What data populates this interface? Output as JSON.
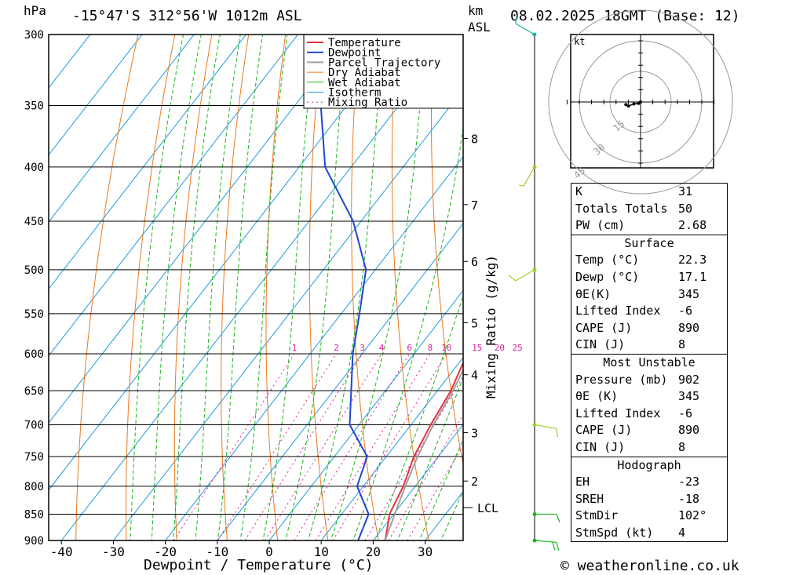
{
  "header": {
    "pressure_unit": "hPa",
    "location": "-15°47'S  312°56'W  1012m  ASL",
    "km_label": "km",
    "asl_label": "ASL",
    "datetime": "08.02.2025  18GMT  (Base: 12)"
  },
  "footer": {
    "copyright": "© weatheronline.co.uk"
  },
  "chart_data": {
    "type": "line",
    "title": "-15°47'S  312°56'W  1012m  ASL",
    "xlabel": "Dewpoint / Temperature (°C)",
    "ylabel": "hPa",
    "secondary_ylabel": "Mixing Ratio (g/kg)",
    "y_scale": "log",
    "ylim": [
      900,
      300
    ],
    "pressure_ticks": [
      300,
      350,
      400,
      450,
      500,
      550,
      600,
      650,
      700,
      750,
      800,
      850,
      900
    ],
    "temperature_ticks": [
      -40,
      -30,
      -20,
      -10,
      0,
      10,
      20,
      30
    ],
    "altitude_ticks_km": [
      {
        "km": "2",
        "p": 791
      },
      {
        "km": "3",
        "p": 712
      },
      {
        "km": "4",
        "p": 628
      },
      {
        "km": "5",
        "p": 561
      },
      {
        "km": "6",
        "p": 491
      },
      {
        "km": "7",
        "p": 434
      },
      {
        "km": "8",
        "p": 376
      }
    ],
    "lcl": {
      "label": "LCL",
      "p": 838
    },
    "mixing_ratio_labels": [
      "1",
      "2",
      "3",
      "4",
      "6",
      "8",
      "10",
      "15",
      "20",
      "25"
    ],
    "mixing_ratio_label_pressure": 600,
    "legend": [
      "Temperature",
      "Dewpoint",
      "Parcel Trajectory",
      "Dry Adiabat",
      "Wet Adiabat",
      "Isotherm",
      "Mixing Ratio"
    ],
    "legend_position": "top-right",
    "colors": {
      "temperature": "#e8323c",
      "dewpoint": "#1e46d2",
      "parcel": "#a0a0a0",
      "dry_adiabat": "#e87a1e",
      "wet_adiabat": "#1eb41e",
      "isotherm": "#1e9bdc",
      "mixing_ratio": "#dc1e9b",
      "wind": "#9bd21e"
    },
    "series": [
      {
        "name": "Temperature",
        "points": [
          [
            900,
            22.3
          ],
          [
            870,
            20.5
          ],
          [
            850,
            19.2
          ],
          [
            800,
            17.7
          ],
          [
            750,
            15.3
          ],
          [
            700,
            13.8
          ],
          [
            650,
            12.6
          ],
          [
            600,
            10.2
          ],
          [
            550,
            6.5
          ],
          [
            500,
            1.9
          ],
          [
            450,
            -1.6
          ],
          [
            400,
            -8.7
          ],
          [
            350,
            -18.0
          ],
          [
            300,
            -30.0
          ]
        ]
      },
      {
        "name": "Dewpoint",
        "points": [
          [
            900,
            17.1
          ],
          [
            850,
            15.2
          ],
          [
            800,
            8.8
          ],
          [
            750,
            6.3
          ],
          [
            700,
            -1.8
          ],
          [
            650,
            -6.6
          ],
          [
            600,
            -11.8
          ],
          [
            550,
            -16.5
          ],
          [
            500,
            -21.8
          ],
          [
            450,
            -31.5
          ],
          [
            400,
            -45.0
          ],
          [
            350,
            -55.0
          ],
          [
            300,
            -67.0
          ]
        ]
      },
      {
        "name": "Parcel Trajectory",
        "points": [
          [
            900,
            22.3
          ],
          [
            838,
            19.7
          ],
          [
            800,
            18.1
          ],
          [
            750,
            16.0
          ],
          [
            700,
            14.3
          ],
          [
            650,
            13.0
          ],
          [
            600,
            11.0
          ],
          [
            550,
            9.0
          ],
          [
            500,
            6.0
          ],
          [
            450,
            2.0
          ],
          [
            400,
            -4.5
          ],
          [
            350,
            -13.0
          ],
          [
            300,
            -23.0
          ]
        ]
      }
    ],
    "wind_barbs": [
      {
        "p": 300,
        "speed_kt": 10,
        "dir": 300
      },
      {
        "p": 400,
        "speed_kt": 5,
        "dir": 210
      },
      {
        "p": 500,
        "speed_kt": 10,
        "dir": 240
      },
      {
        "p": 700,
        "speed_kt": 10,
        "dir": 100
      },
      {
        "p": 850,
        "speed_kt": 10,
        "dir": 90
      },
      {
        "p": 900,
        "speed_kt": 15,
        "dir": 95
      }
    ],
    "hodograph": {
      "unit": "kt",
      "ring_labels": [
        "15",
        "30",
        "45"
      ],
      "points": [
        [
          0,
          0
        ],
        [
          -3,
          -2
        ],
        [
          -10,
          -3
        ],
        [
          -18,
          -6
        ],
        [
          -22,
          -4
        ]
      ]
    }
  },
  "indices": {
    "general": [
      {
        "label": "K",
        "value": "31"
      },
      {
        "label": "Totals Totals",
        "value": "50"
      },
      {
        "label": "PW (cm)",
        "value": "2.68"
      }
    ],
    "surface": {
      "title": "Surface",
      "rows": [
        {
          "label": "Temp (°C)",
          "value": "22.3"
        },
        {
          "label": "Dewp (°C)",
          "value": "17.1"
        },
        {
          "label": "θE(K)",
          "value": "345"
        },
        {
          "label": "Lifted Index",
          "value": "-6"
        },
        {
          "label": "CAPE (J)",
          "value": "890"
        },
        {
          "label": "CIN (J)",
          "value": "8"
        }
      ]
    },
    "most_unstable": {
      "title": "Most Unstable",
      "rows": [
        {
          "label": "Pressure (mb)",
          "value": "902"
        },
        {
          "label": "θE (K)",
          "value": "345"
        },
        {
          "label": "Lifted Index",
          "value": "-6"
        },
        {
          "label": "CAPE (J)",
          "value": "890"
        },
        {
          "label": "CIN (J)",
          "value": "8"
        }
      ]
    },
    "hodograph": {
      "title": "Hodograph",
      "rows": [
        {
          "label": "EH",
          "value": "-23"
        },
        {
          "label": "SREH",
          "value": "-18"
        },
        {
          "label": "StmDir",
          "value": "102°"
        },
        {
          "label": "StmSpd (kt)",
          "value": "4"
        }
      ]
    }
  }
}
